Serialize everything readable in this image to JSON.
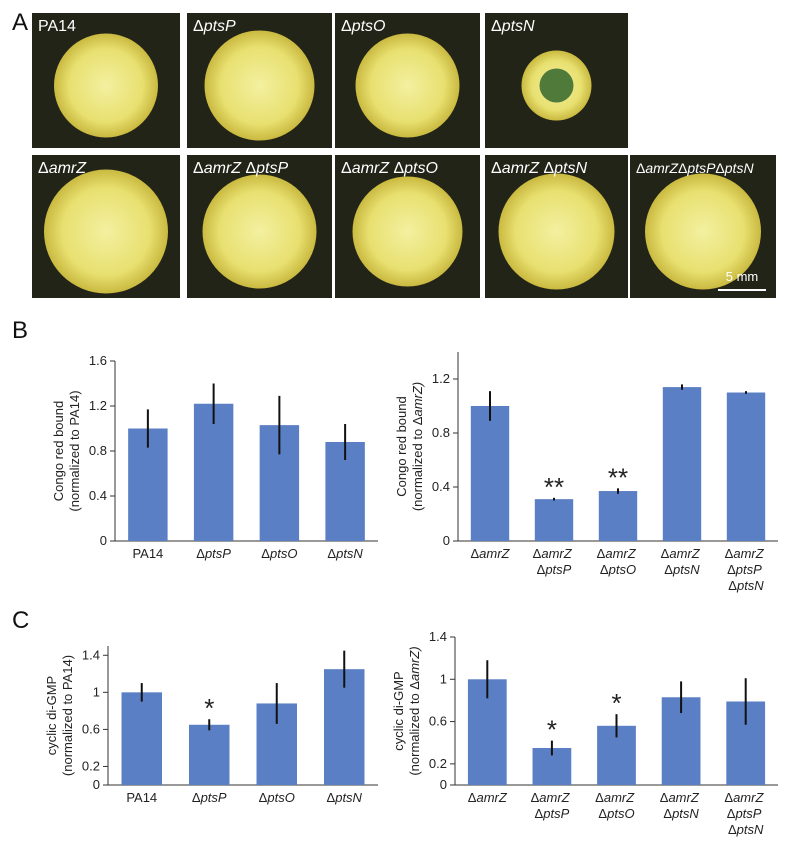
{
  "panel_labels": [
    "A",
    "B",
    "C"
  ],
  "panel_a": {
    "photos": [
      "PA14",
      "ΔptsP",
      "ΔptsO",
      "ΔptsN",
      "ΔamrZ",
      "ΔamrZ ΔptsP",
      "ΔamrZ ΔptsO",
      "ΔamrZ ΔptsN",
      "ΔamrZΔptsPΔptsN"
    ],
    "scale_bar": "5 mm"
  },
  "chart_data": [
    {
      "type": "bar",
      "ylabel": [
        "Congo red bound",
        "(normalized to PA14)"
      ],
      "categories": [
        "PA14",
        "ΔptsP",
        "ΔptsO",
        "ΔptsN"
      ],
      "values": [
        1.0,
        1.22,
        1.03,
        0.88
      ],
      "errors": [
        0.17,
        0.18,
        0.26,
        0.16
      ],
      "color": "#5b7fc4",
      "ylim": [
        0,
        1.6
      ],
      "yticks": [
        0,
        0.4,
        0.8,
        1.2,
        1.6
      ]
    },
    {
      "type": "bar",
      "ylabel": [
        "Congo red bound",
        "(normalized to ΔamrZ)"
      ],
      "categories": [
        "ΔamrZ",
        "ΔamrZ ΔptsP",
        "ΔamrZ ΔptsO",
        "ΔamrZ ΔptsN",
        "ΔamrZ ΔptsP ΔptsN"
      ],
      "values": [
        1.0,
        0.31,
        0.37,
        1.14,
        1.1
      ],
      "errors": [
        0.11,
        0.01,
        0.02,
        0.02,
        0.01
      ],
      "significance": [
        null,
        "**",
        "**",
        null,
        null
      ],
      "color": "#5b7fc4",
      "ylim": [
        0,
        1.4
      ],
      "yticks": [
        0,
        0.4,
        0.8,
        1.2
      ]
    },
    {
      "type": "bar",
      "ylabel": [
        "cyclic di-GMP",
        "(normalized to PA14)"
      ],
      "categories": [
        "PA14",
        "ΔptsP",
        "ΔptsO",
        "ΔptsN"
      ],
      "values": [
        1.0,
        0.65,
        0.88,
        1.25
      ],
      "errors": [
        0.1,
        0.06,
        0.22,
        0.2
      ],
      "significance": [
        null,
        "*",
        null,
        null
      ],
      "color": "#5b7fc4",
      "ylim": [
        0,
        1.5
      ],
      "yticks": [
        0,
        0.2,
        0.6,
        1,
        1.4
      ]
    },
    {
      "type": "bar",
      "ylabel": [
        "cyclic di-GMP",
        "(normalized to ΔamrZ)"
      ],
      "categories": [
        "ΔamrZ",
        "ΔamrZ ΔptsP",
        "ΔamrZ ΔptsO",
        "ΔamrZ ΔptsN",
        "ΔamrZ ΔptsP ΔptsN"
      ],
      "values": [
        1.0,
        0.35,
        0.56,
        0.83,
        0.79
      ],
      "errors": [
        0.18,
        0.07,
        0.11,
        0.15,
        0.22
      ],
      "significance": [
        null,
        "*",
        "*",
        null,
        null
      ],
      "color": "#5b7fc4",
      "ylim": [
        0,
        1.4
      ],
      "yticks": [
        0,
        0.2,
        0.6,
        1,
        1.4
      ]
    }
  ]
}
